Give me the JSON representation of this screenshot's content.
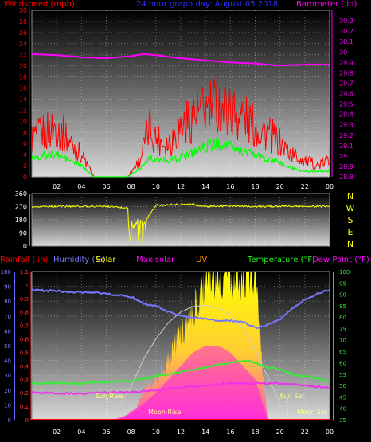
{
  "chart_data": [
    {
      "type": "line",
      "title": "24 hour graph day:  August 05 2018",
      "left_axis_label": "Windspeed (mph)",
      "right_axis_label": "Barometer (.in)",
      "x_ticks": [
        "02",
        "04",
        "06",
        "08",
        "10",
        "12",
        "14",
        "16",
        "18",
        "20",
        "22",
        "00"
      ],
      "ylim_left": [
        0,
        30
      ],
      "yticks_left": [
        0,
        2,
        4,
        6,
        8,
        10,
        12,
        14,
        16,
        18,
        20,
        22,
        24,
        26,
        28,
        30
      ],
      "ylim_right": [
        28.8,
        30.4
      ],
      "yticks_right": [
        28.8,
        28.9,
        29,
        29.1,
        29.2,
        29.3,
        29.4,
        29.5,
        29.6,
        29.7,
        29.8,
        29.9,
        30,
        30.1,
        30.2,
        30.3
      ],
      "grid": true,
      "colors": {
        "wind_gust": "#ff0000",
        "wind_avg": "#00ff00",
        "barometer": "#ff00ff",
        "left_axis": "#ff0000",
        "right_axis": "#ff00ff",
        "title": "#3030ff"
      },
      "series": [
        {
          "key": "wind_gust",
          "x": [
            0,
            2,
            4,
            5,
            6,
            7.7,
            8.7,
            9.5,
            10,
            11,
            12,
            13,
            14,
            15,
            16,
            17,
            18,
            19,
            20,
            21,
            22,
            23,
            24
          ],
          "values": [
            7,
            9,
            4,
            0,
            0,
            0,
            3,
            9,
            7,
            6,
            9,
            11,
            12,
            13,
            12,
            11,
            9,
            8,
            6,
            4,
            3,
            2,
            3
          ]
        },
        {
          "key": "wind_avg",
          "x": [
            0,
            2,
            4,
            5,
            6,
            7.7,
            8.7,
            9.5,
            10,
            11,
            12,
            13,
            14,
            15,
            16,
            17,
            18,
            19,
            20,
            21,
            22,
            23,
            24
          ],
          "values": [
            3.5,
            4,
            2,
            0,
            0,
            0,
            1.5,
            3.5,
            3,
            3,
            3.5,
            4.5,
            5.5,
            6,
            5.5,
            4.5,
            4,
            3,
            2.5,
            1.5,
            1,
            1,
            1
          ]
        },
        {
          "key": "barometer",
          "x": [
            0,
            2,
            4,
            6,
            8,
            9,
            10,
            12,
            14,
            16,
            18,
            20,
            22,
            24
          ],
          "values": [
            29.98,
            29.97,
            29.95,
            29.94,
            29.96,
            29.98,
            29.97,
            29.94,
            29.92,
            29.9,
            29.89,
            29.87,
            29.88,
            29.88
          ]
        }
      ]
    },
    {
      "type": "scatter",
      "title": "",
      "x_ticks": [
        "02",
        "04",
        "06",
        "08",
        "10",
        "12",
        "14",
        "16",
        "18",
        "20",
        "22",
        "00"
      ],
      "ylim": [
        0,
        360
      ],
      "yticks": [
        0,
        90,
        180,
        270,
        360
      ],
      "compass_labels": [
        "N",
        "W",
        "S",
        "E",
        "N"
      ],
      "grid": true,
      "colors": {
        "direction": "#ffff00",
        "compass": "#ffff00",
        "axis": "#ffffff"
      },
      "series": [
        {
          "key": "wind_direction",
          "x": [
            0,
            4,
            6,
            7.8,
            8.2,
            8.6,
            9,
            10,
            12,
            13,
            14,
            16,
            18,
            20,
            22,
            24
          ],
          "values": [
            270,
            272,
            272,
            260,
            110,
            200,
            150,
            280,
            285,
            285,
            270,
            275,
            270,
            272,
            270,
            272
          ]
        }
      ]
    },
    {
      "type": "area",
      "title": "",
      "labels": {
        "rainfall": "Rainfall (.in)",
        "humidity": "Humidity (%)",
        "solar": "Solar",
        "max_solar": "Max solar",
        "uv": "UV",
        "temperature": "Temperature (°F)",
        "dew_point": "Dew Point (°F)"
      },
      "x_ticks": [
        "02",
        "04",
        "06",
        "08",
        "10",
        "12",
        "14",
        "16",
        "18",
        "20",
        "22",
        "00"
      ],
      "ylim_rain": [
        0,
        1.1
      ],
      "yticks_rain": [
        0,
        0.1,
        0.2,
        0.3,
        0.4,
        0.5,
        0.6,
        0.7,
        0.8,
        0.9,
        1,
        1.1
      ],
      "ylim_humidity": [
        0,
        100
      ],
      "yticks_humidity": [
        0,
        10,
        20,
        30,
        40,
        50,
        60,
        70,
        80,
        90,
        100
      ],
      "ylim_temp": [
        35,
        100
      ],
      "yticks_temp": [
        35,
        40,
        45,
        50,
        55,
        60,
        65,
        70,
        75,
        80,
        85,
        90,
        95,
        100
      ],
      "annotations": {
        "sun_rise": "Sun Rise",
        "sun_set": "Sun Set",
        "moon_rise": "Moon Rise",
        "moon_set": "Moon Set"
      },
      "sun_rise_x": 6.1,
      "sun_set_x": 20.6,
      "grid": true,
      "colors": {
        "rainfall": "#ff0000",
        "humidity": "#7777ff",
        "solar": "#ffff00",
        "max_solar": "#cccccc",
        "uv": "#ff00ff",
        "temperature": "#33ee33",
        "dew_point": "#ee33ee",
        "left_axis": "#6666ff",
        "right_axis": "#22dd22"
      },
      "series": [
        {
          "key": "humidity",
          "x": [
            0,
            1,
            2,
            3,
            4,
            5,
            6,
            7,
            8,
            9,
            10,
            11,
            12,
            13,
            14,
            15,
            16,
            17,
            18,
            19,
            20,
            21,
            22,
            23,
            24
          ],
          "values": [
            88,
            87,
            87,
            86,
            86,
            86,
            85,
            84,
            83,
            78,
            77,
            73,
            70,
            69,
            68,
            67,
            67,
            66,
            62,
            64,
            68,
            75,
            81,
            85,
            88
          ]
        },
        {
          "key": "temperature",
          "x": [
            0,
            2,
            4,
            6,
            8,
            10,
            12,
            14,
            15,
            16,
            17,
            18,
            19,
            20,
            21,
            22,
            23,
            24
          ],
          "values": [
            51,
            51,
            51,
            51.5,
            52,
            54,
            56,
            58,
            59,
            60,
            61,
            60,
            58,
            57,
            55,
            54,
            53,
            52
          ]
        },
        {
          "key": "dew_point",
          "x": [
            0,
            2,
            4,
            6,
            8,
            10,
            12,
            14,
            16,
            18,
            20,
            22,
            24
          ],
          "values": [
            47,
            46.5,
            46.5,
            47,
            47,
            48,
            49,
            50,
            51,
            51,
            51,
            50,
            49
          ]
        },
        {
          "key": "solar",
          "x": [
            6.5,
            7.5,
            8.5,
            9,
            10,
            11,
            12,
            12.5,
            13,
            13.5,
            14,
            14.5,
            15,
            15.5,
            16,
            16.5,
            17,
            17.5,
            18,
            18.5,
            19
          ],
          "values": [
            0,
            0.03,
            0.1,
            0.22,
            0.3,
            0.45,
            0.65,
            0.75,
            0.8,
            0.95,
            1.1,
            1.1,
            1.1,
            1.1,
            1.1,
            1.1,
            1.1,
            1.1,
            1.1,
            0.5,
            0
          ]
        },
        {
          "key": "uv",
          "x": [
            7,
            8,
            9,
            10,
            11,
            12,
            13,
            14,
            15,
            16,
            17,
            18,
            19
          ],
          "values": [
            0,
            0.05,
            0.12,
            0.2,
            0.3,
            0.4,
            0.5,
            0.55,
            0.55,
            0.5,
            0.4,
            0.3,
            0
          ]
        },
        {
          "key": "max_solar",
          "x": [
            6.1,
            7,
            8,
            9,
            10,
            11,
            12,
            13,
            14,
            15,
            16,
            17,
            18,
            19,
            20,
            20.6
          ],
          "values": [
            0,
            0.1,
            0.25,
            0.45,
            0.6,
            0.72,
            0.8,
            0.84,
            0.85,
            0.83,
            0.78,
            0.68,
            0.52,
            0.32,
            0.12,
            0
          ]
        },
        {
          "key": "rainfall",
          "x": [
            0,
            24
          ],
          "values": [
            0,
            0
          ]
        }
      ]
    }
  ]
}
